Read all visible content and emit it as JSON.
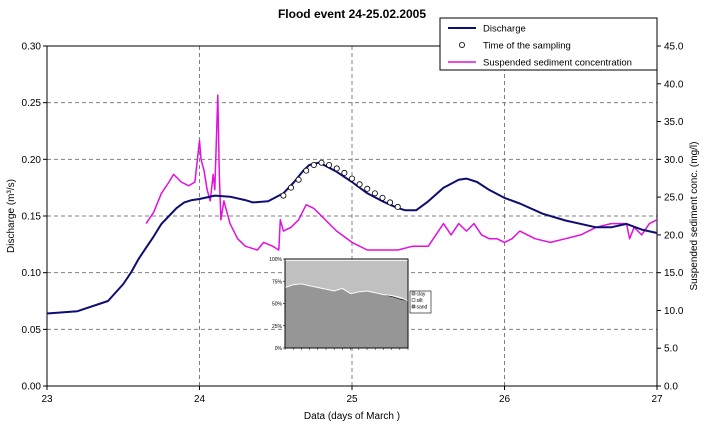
{
  "chart_data": {
    "type": "line",
    "title": "Flood event 24-25.02.2005",
    "xlabel": "Data (days of March )",
    "ylabel_left": "Discharge (m³/s)",
    "ylabel_right": "Suspended sediment conc. (mg/l)",
    "xlim": [
      23,
      27
    ],
    "ylim_left": [
      0,
      0.3
    ],
    "ylim_right": [
      0,
      45
    ],
    "grid": true,
    "legend_position": "top-right",
    "x_ticks": [
      "23",
      "24",
      "25",
      "26",
      "27"
    ],
    "y_left_ticks": [
      "0.00",
      "0.05",
      "0.10",
      "0.15",
      "0.20",
      "0.25",
      "0.30"
    ],
    "y_right_ticks": [
      "0.0",
      "5.0",
      "10.0",
      "15.0",
      "20.0",
      "25.0",
      "30.0",
      "35.0",
      "40.0",
      "45.0"
    ],
    "series": [
      {
        "name": "Discharge",
        "axis": "left",
        "color": "#0d0d73",
        "x": [
          23.0,
          23.2,
          23.4,
          23.5,
          23.55,
          23.6,
          23.65,
          23.7,
          23.75,
          23.8,
          23.85,
          23.9,
          23.95,
          24.0,
          24.1,
          24.2,
          24.3,
          24.35,
          24.45,
          24.55,
          24.62,
          24.68,
          24.72,
          24.78,
          24.83,
          24.9,
          25.0,
          25.1,
          25.2,
          25.3,
          25.35,
          25.42,
          25.5,
          25.6,
          25.7,
          25.75,
          25.82,
          25.9,
          26.0,
          26.1,
          26.25,
          26.4,
          26.6,
          26.7,
          26.8,
          26.9,
          27.0
        ],
        "values": [
          0.064,
          0.066,
          0.075,
          0.09,
          0.1,
          0.112,
          0.122,
          0.132,
          0.143,
          0.15,
          0.157,
          0.162,
          0.164,
          0.165,
          0.168,
          0.167,
          0.164,
          0.162,
          0.163,
          0.17,
          0.18,
          0.19,
          0.195,
          0.197,
          0.194,
          0.189,
          0.18,
          0.17,
          0.163,
          0.157,
          0.155,
          0.155,
          0.163,
          0.175,
          0.182,
          0.183,
          0.18,
          0.173,
          0.166,
          0.161,
          0.152,
          0.146,
          0.14,
          0.14,
          0.143,
          0.138,
          0.135
        ]
      },
      {
        "name": "Suspended sediment concentration",
        "axis": "right",
        "color": "#e010e0",
        "x": [
          23.65,
          23.7,
          23.75,
          23.8,
          23.83,
          23.88,
          23.93,
          23.97,
          24.0,
          24.01,
          24.03,
          24.05,
          24.07,
          24.09,
          24.1,
          24.12,
          24.13,
          24.14,
          24.16,
          24.2,
          24.25,
          24.3,
          24.38,
          24.42,
          24.48,
          24.52,
          24.53,
          24.55,
          24.6,
          24.65,
          24.7,
          24.75,
          24.8,
          24.85,
          24.9,
          25.0,
          25.1,
          25.2,
          25.3,
          25.4,
          25.5,
          25.6,
          25.65,
          25.7,
          25.75,
          25.8,
          25.85,
          25.9,
          25.95,
          26.0,
          26.05,
          26.1,
          26.2,
          26.3,
          26.4,
          26.5,
          26.6,
          26.7,
          26.8,
          26.82,
          26.85,
          26.9,
          26.95,
          27.0
        ],
        "values": [
          21.5,
          23.0,
          25.5,
          27.0,
          28.0,
          27.0,
          26.5,
          27.0,
          32.5,
          30.0,
          28.5,
          26.0,
          24.5,
          28.0,
          26.0,
          38.5,
          28.0,
          22.0,
          24.5,
          21.5,
          19.5,
          18.5,
          18.0,
          19.0,
          18.5,
          18.0,
          22.0,
          20.5,
          21.0,
          22.0,
          24.0,
          23.5,
          22.5,
          21.5,
          20.5,
          19.0,
          18.0,
          18.0,
          18.0,
          18.5,
          18.5,
          21.5,
          20.0,
          21.5,
          20.5,
          21.5,
          20.0,
          19.5,
          19.5,
          19.0,
          19.5,
          20.5,
          19.5,
          19.0,
          19.5,
          20.0,
          21.0,
          21.5,
          21.5,
          19.5,
          21.0,
          20.0,
          21.5,
          22.0
        ]
      },
      {
        "name": "Time of the sampling",
        "axis": "left",
        "marker": "open-circle",
        "x": [
          24.55,
          24.6,
          24.65,
          24.7,
          24.75,
          24.8,
          24.85,
          24.9,
          24.95,
          25.0,
          25.05,
          25.1,
          25.15,
          25.2,
          25.25,
          25.3
        ],
        "values": [
          0.168,
          0.175,
          0.182,
          0.19,
          0.195,
          0.197,
          0.195,
          0.192,
          0.188,
          0.183,
          0.178,
          0.174,
          0.17,
          0.166,
          0.162,
          0.158
        ]
      }
    ],
    "inset": {
      "type": "area",
      "y_ticks": [
        "0%",
        "25%",
        "50%",
        "75%",
        "100%"
      ],
      "legend": [
        "clay",
        "silt",
        "sand"
      ],
      "colors": {
        "clay": "#c0c0c0",
        "silt": "#ffffff",
        "sand": "#969696"
      },
      "n_samples": 16,
      "sand": [
        0.68,
        0.71,
        0.72,
        0.7,
        0.68,
        0.66,
        0.64,
        0.67,
        0.61,
        0.63,
        0.64,
        0.62,
        0.6,
        0.58,
        0.55,
        0.53
      ],
      "silt": [
        0.0,
        0.0,
        0.0,
        0.0,
        0.0,
        0.0,
        0.0,
        0.0,
        0.0,
        0.0,
        0.0,
        0.0,
        0.0,
        0.01,
        0.02,
        0.0
      ]
    }
  }
}
